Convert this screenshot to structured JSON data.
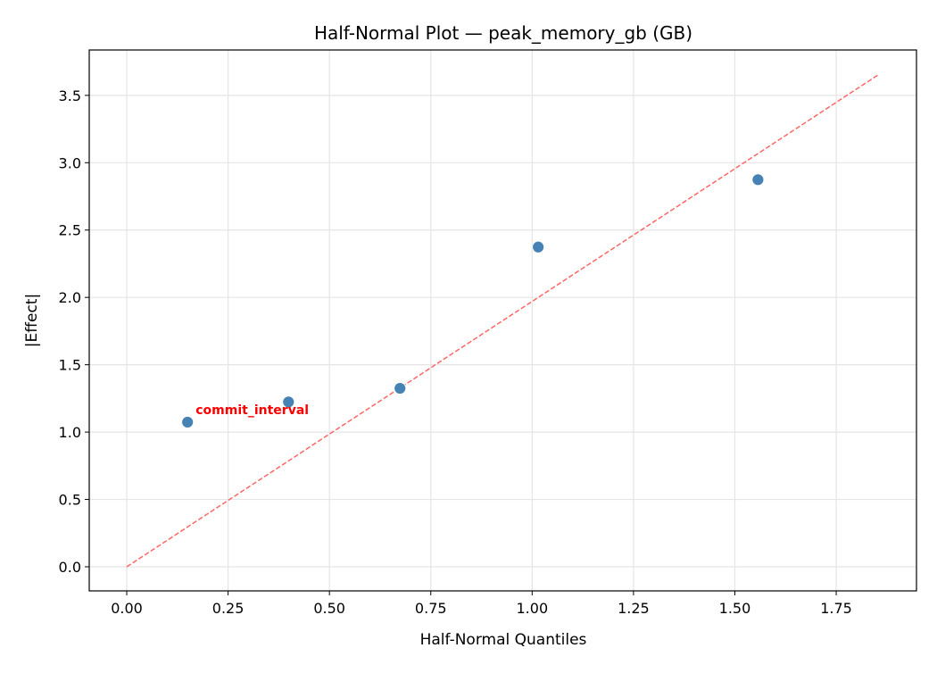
{
  "chart_data": {
    "type": "scatter",
    "title": "Half-Normal Plot — peak_memory_gb (GB)",
    "xlabel": "Half-Normal Quantiles",
    "ylabel": "|Effect|",
    "xlim": [
      -0.0925,
      1.948
    ],
    "ylim": [
      -0.179,
      3.837
    ],
    "xticks": [
      0.0,
      0.25,
      0.5,
      0.75,
      1.0,
      1.25,
      1.5,
      1.75
    ],
    "xtick_labels": [
      "0.00",
      "0.25",
      "0.50",
      "0.75",
      "1.00",
      "1.25",
      "1.50",
      "1.75"
    ],
    "yticks": [
      0.0,
      0.5,
      1.0,
      1.5,
      2.0,
      2.5,
      3.0,
      3.5
    ],
    "ytick_labels": [
      "0.0",
      "0.5",
      "1.0",
      "1.5",
      "2.0",
      "2.5",
      "3.0",
      "3.5"
    ],
    "grid": true,
    "points": [
      {
        "x": 0.15,
        "y": 1.074
      },
      {
        "x": 0.399,
        "y": 1.224
      },
      {
        "x": 0.674,
        "y": 1.325
      },
      {
        "x": 1.015,
        "y": 2.374
      },
      {
        "x": 1.557,
        "y": 2.874
      }
    ],
    "reference_line": {
      "x": [
        0.0,
        1.853
      ],
      "y": [
        0.0,
        3.651
      ],
      "style": "dashed",
      "color": "#ff6666"
    },
    "annotations": [
      {
        "text": "commit_interval",
        "x": 0.17,
        "y": 1.16,
        "color": "#ff0000"
      }
    ],
    "point_color": "#4682b4"
  }
}
